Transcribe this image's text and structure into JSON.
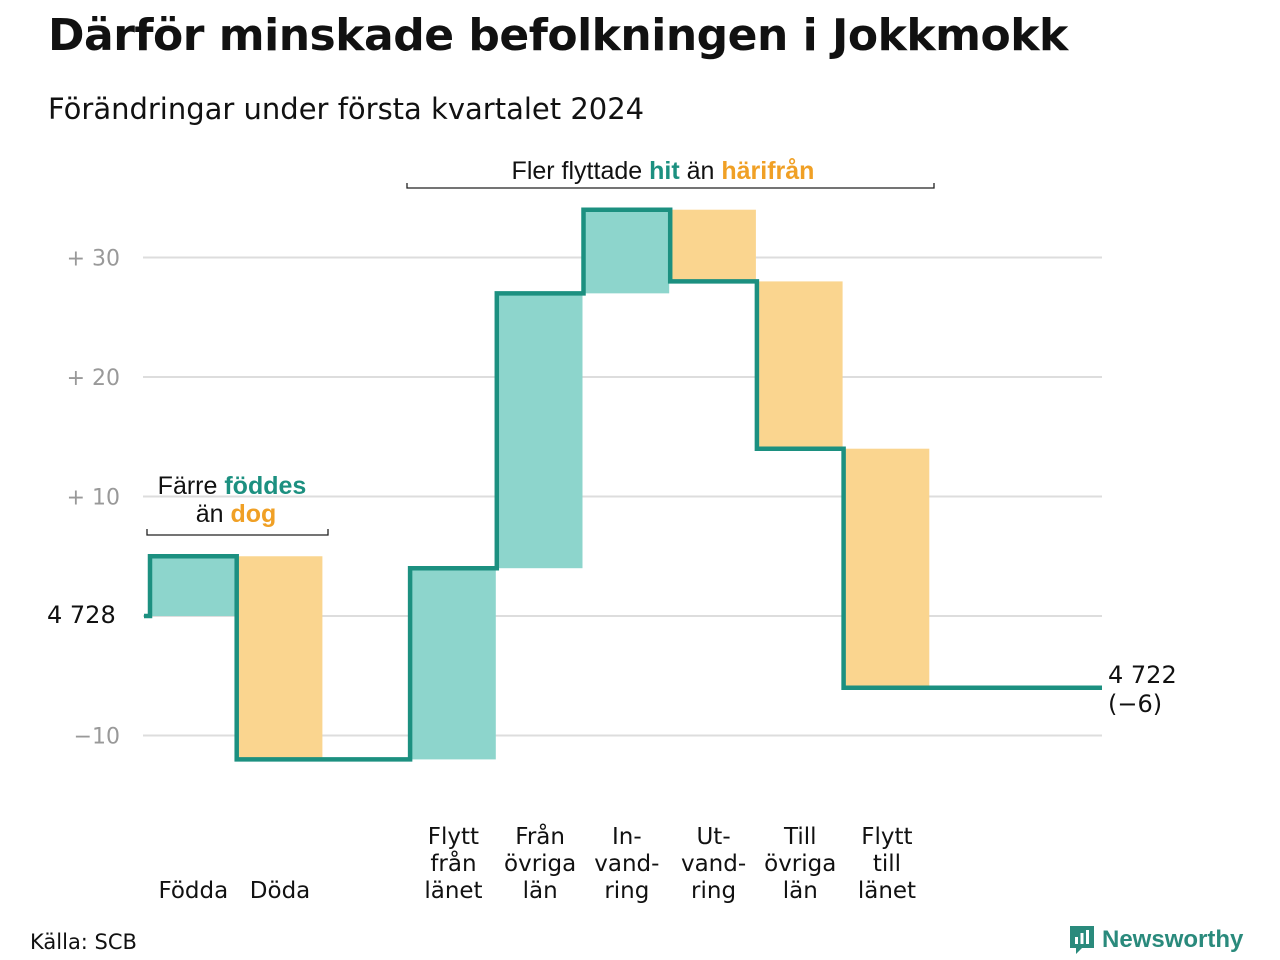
{
  "title": "Därför minskade befolkningen i Jokkmokk",
  "subtitle": "Förändringar under första kvartalet 2024",
  "source": "Källa: SCB",
  "brand": "Newsworthy",
  "colors": {
    "increase_fill": "#8dd5cc",
    "decrease_fill": "#fad58f",
    "line": "#1c9080",
    "teal_text": "#1c9080",
    "orange_text": "#f0a025",
    "grid": "#dddddd",
    "tick": "#999999"
  },
  "chart_data": {
    "type": "waterfall",
    "start_label": "4 728",
    "end_label": "4 722",
    "end_change": "(−6)",
    "ylim": [
      -14,
      38
    ],
    "yticks": [
      {
        "value": 30,
        "label": "+  30"
      },
      {
        "value": 20,
        "label": "+  20"
      },
      {
        "value": 10,
        "label": "+  10"
      },
      {
        "value": -10,
        "label": "−10"
      }
    ],
    "steps": [
      {
        "label": [
          "Födda"
        ],
        "change": 5,
        "kind": "increase"
      },
      {
        "label": [
          "Döda"
        ],
        "change": -17,
        "kind": "decrease"
      },
      {
        "label": [
          ""
        ],
        "change": 0,
        "kind": "gap"
      },
      {
        "label": [
          "Flytt",
          "från",
          "länet"
        ],
        "change": 16,
        "kind": "increase"
      },
      {
        "label": [
          "Från",
          "övriga",
          "län"
        ],
        "change": 23,
        "kind": "increase"
      },
      {
        "label": [
          "In-",
          "vand-",
          "ring"
        ],
        "change": 7,
        "kind": "increase"
      },
      {
        "label": [
          "Ut-",
          "vand-",
          "ring"
        ],
        "change": -6,
        "kind": "decrease"
      },
      {
        "label": [
          "Till",
          "övriga",
          "län"
        ],
        "change": -14,
        "kind": "decrease"
      },
      {
        "label": [
          "Flytt",
          "till",
          "länet"
        ],
        "change": -20,
        "kind": "decrease"
      }
    ],
    "annotations": {
      "births": {
        "prefix": "Färre",
        "highlight1": "föddes",
        "middle": "än",
        "highlight2": "dog"
      },
      "migration": {
        "prefix": "Fler flyttade",
        "highlight1": "hit",
        "middle": "än",
        "highlight2": "härifrån"
      }
    }
  }
}
